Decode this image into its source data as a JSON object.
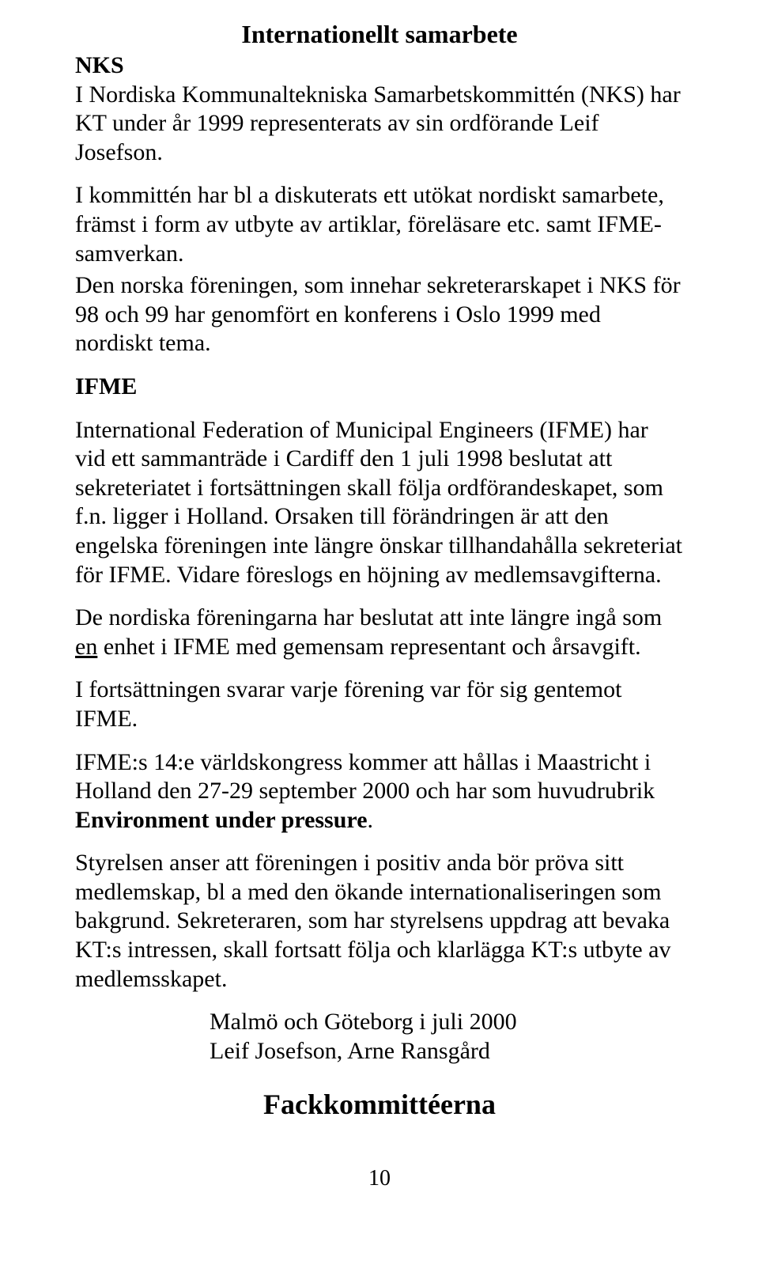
{
  "title": "Internationellt samarbete",
  "nks": {
    "heading": "NKS",
    "p1": "I Nordiska Kommunaltekniska Samarbetskommittén (NKS) har KT under år 1999 representerats av sin ordförande Leif Josefson.",
    "p2": "I kommittén har bl a diskuterats ett utökat nordiskt samarbete, främst i form av utbyte av artiklar, föreläsare etc. samt IFME-samverkan.",
    "p3": "Den norska  föreningen, som innehar sekreterarskapet i NKS för 98 och 99 har genomfört en konferens i Oslo 1999 med nordiskt tema."
  },
  "ifme": {
    "heading": "IFME",
    "p1": "International Federation of Municipal Engineers (IFME) har vid ett sammanträde i Cardiff den 1 juli 1998 beslutat att sekreteriatet i fortsättningen skall följa ordförandeskapet, som f.n. ligger i Holland. Orsaken till förändringen är att den engelska föreningen inte längre önskar tillhandahålla sekreteriat för IFME. Vidare föreslogs en höjning av medlemsavgifterna.",
    "p2_before_underline": "De nordiska föreningarna har beslutat att inte längre ingå som ",
    "p2_underlined": "en",
    "p2_after_underline": " enhet i IFME med gemensam representant och årsavgift.",
    "p3": "I fortsättningen svarar varje förening var för sig gentemot IFME.",
    "p4_part1": "IFME:s 14:e världskongress kommer att hållas i Maastricht i Holland den 27-29 september 2000 och har som huvudrubrik ",
    "p4_bold": "Environment under pressure",
    "p5": "Styrelsen anser att föreningen i positiv anda bör pröva sitt medlemskap, bl a med den ökande internationaliseringen som bakgrund. Sekreteraren, som har styrelsens uppdrag att bevaka KT:s  intressen, skall fortsatt följa och klarlägga KT:s utbyte av medlemsskapet."
  },
  "closing": {
    "line1": "Malmö  och Göteborg i juli 2000",
    "line2": "Leif Josefson, Arne Ransgård"
  },
  "committees_heading": "Fackkommittéerna",
  "page_number": "10"
}
